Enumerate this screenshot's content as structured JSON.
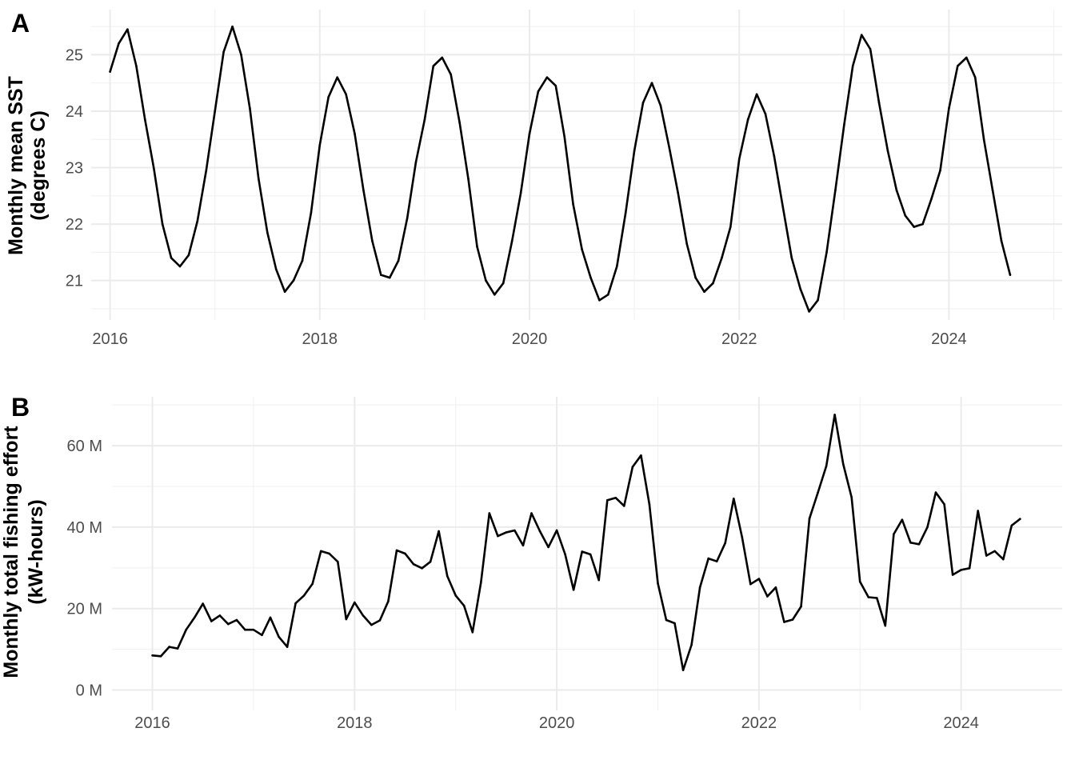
{
  "chart_data": [
    {
      "type": "line",
      "panel_tag": "A",
      "title": "",
      "xlabel": "",
      "ylabel": [
        "Monthly mean SST",
        "(degrees C)"
      ],
      "xlim": [
        2015.82,
        2025.08
      ],
      "ylim": [
        20.3,
        25.8
      ],
      "x_ticks": [
        2016,
        2018,
        2020,
        2022,
        2024
      ],
      "x_tick_labels": [
        "2016",
        "2018",
        "2020",
        "2022",
        "2024"
      ],
      "y_ticks": [
        21,
        22,
        23,
        24,
        25
      ],
      "y_tick_labels": [
        "21",
        "22",
        "23",
        "24",
        "25"
      ],
      "grid": true,
      "start": "2016-01",
      "series": [
        {
          "color": "#000000",
          "values": [
            24.7,
            25.2,
            25.45,
            24.8,
            23.85,
            23.0,
            22.0,
            21.4,
            21.25,
            21.45,
            22.05,
            22.95,
            24.0,
            25.05,
            25.5,
            25.0,
            24.05,
            22.8,
            21.85,
            21.2,
            20.8,
            21.0,
            21.35,
            22.2,
            23.4,
            24.25,
            24.6,
            24.3,
            23.6,
            22.6,
            21.7,
            21.1,
            21.05,
            21.35,
            22.1,
            23.1,
            23.85,
            24.8,
            24.95,
            24.65,
            23.8,
            22.8,
            21.6,
            21.0,
            20.75,
            20.95,
            21.7,
            22.55,
            23.6,
            24.35,
            24.6,
            24.45,
            23.55,
            22.35,
            21.55,
            21.05,
            20.65,
            20.75,
            21.25,
            22.2,
            23.3,
            24.15,
            24.5,
            24.1,
            23.35,
            22.55,
            21.65,
            21.05,
            20.8,
            20.95,
            21.4,
            21.95,
            23.15,
            23.85,
            24.3,
            23.95,
            23.2,
            22.3,
            21.4,
            20.85,
            20.45,
            20.65,
            21.5,
            22.6,
            23.75,
            24.8,
            25.35,
            25.1,
            24.15,
            23.3,
            22.6,
            22.15,
            21.95,
            22.0,
            22.45,
            22.95,
            24.05,
            24.8,
            24.95,
            24.6,
            23.5,
            22.6,
            21.7,
            21.1
          ]
        }
      ]
    },
    {
      "type": "line",
      "panel_tag": "B",
      "title": "",
      "xlabel": "",
      "ylabel": [
        "Monthly total fishing effort",
        "(kW-hours)"
      ],
      "xlim": [
        2015.6,
        2025.0
      ],
      "ylim": [
        -5,
        72
      ],
      "x_ticks": [
        2016,
        2018,
        2020,
        2022,
        2024
      ],
      "x_tick_labels": [
        "2016",
        "2018",
        "2020",
        "2022",
        "2024"
      ],
      "y_ticks": [
        0,
        20,
        40,
        60
      ],
      "y_tick_labels": [
        "0 M",
        "20 M",
        "40 M",
        "60 M"
      ],
      "y_unit": "million kW-hours",
      "grid": true,
      "start": "2016-01",
      "series": [
        {
          "color": "#000000",
          "values": [
            8.5,
            8.3,
            10.6,
            10.2,
            14.8,
            17.8,
            21.2,
            16.9,
            18.3,
            16.2,
            17.2,
            14.8,
            14.8,
            13.5,
            17.8,
            13.1,
            10.6,
            21.3,
            23.2,
            26.1,
            34.1,
            33.5,
            31.5,
            17.4,
            21.5,
            18.3,
            16.0,
            17.1,
            21.8,
            34.3,
            33.5,
            30.9,
            29.9,
            31.5,
            39.0,
            28.0,
            23.2,
            20.7,
            14.2,
            26.4,
            43.4,
            37.8,
            38.7,
            39.2,
            35.5,
            43.4,
            39.0,
            35.1,
            39.2,
            33.3,
            24.6,
            34.0,
            33.3,
            27.0,
            46.6,
            47.2,
            45.2,
            54.8,
            57.6,
            45.6,
            26.2,
            17.2,
            16.4,
            4.9,
            11.1,
            25.2,
            32.3,
            31.6,
            36.1,
            47.0,
            37.5,
            26.0,
            27.3,
            23.0,
            25.2,
            16.7,
            17.3,
            20.5,
            42.1,
            48.5,
            55.0,
            67.6,
            55.5,
            47.3,
            26.6,
            22.8,
            22.6,
            15.8,
            38.3,
            41.8,
            36.2,
            35.8,
            40.0,
            48.5,
            45.6,
            28.3,
            29.5,
            29.9,
            44.0,
            33.0,
            34.1,
            32.1,
            40.4,
            42.0
          ]
        }
      ]
    }
  ]
}
